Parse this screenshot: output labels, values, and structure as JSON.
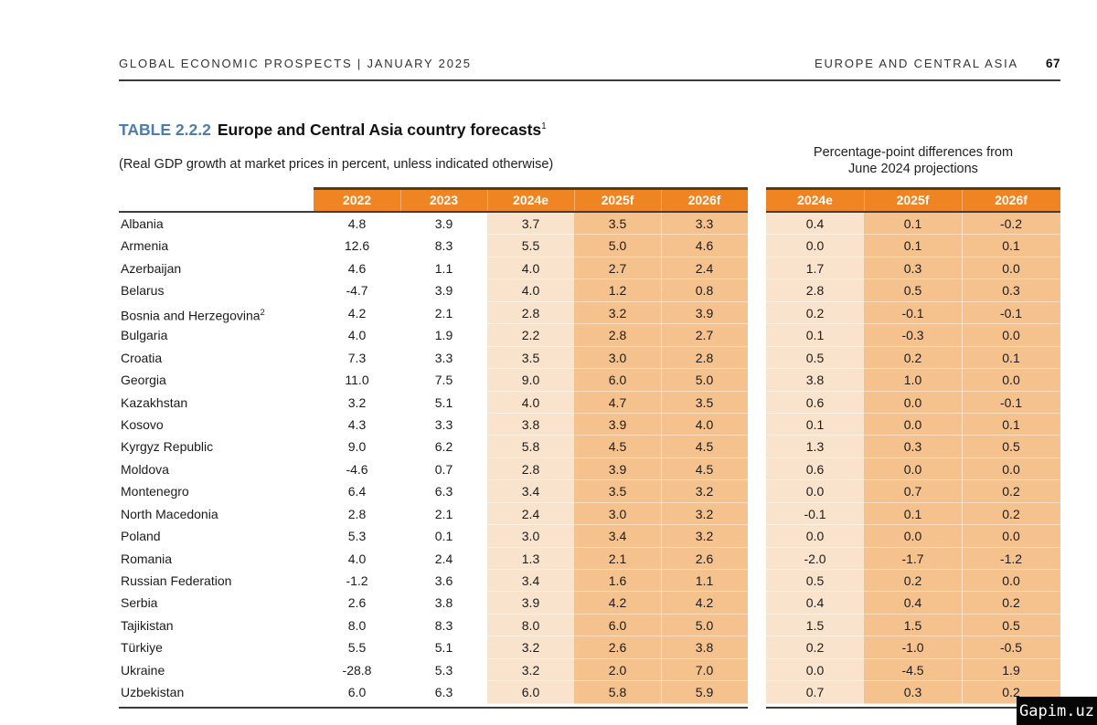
{
  "page_header": {
    "left_title": "GLOBAL ECONOMIC PROSPECTS | JANUARY 2025",
    "section": "EUROPE AND CENTRAL ASIA",
    "page_number": "67"
  },
  "table": {
    "label": "TABLE 2.2.2",
    "title": "Europe and Central Asia country forecasts",
    "title_footnote": "1",
    "subtitle": "(Real GDP growth at market prices in percent, unless indicated otherwise)",
    "diff_note_line1": "Percentage-point differences from",
    "diff_note_line2": "June 2024 projections",
    "columns": [
      "2022",
      "2023",
      "2024e",
      "2025f",
      "2026f"
    ],
    "diff_columns": [
      "2024e",
      "2025f",
      "2026f"
    ],
    "rows": [
      {
        "name": "Albania",
        "values": [
          "4.8",
          "3.9",
          "3.7",
          "3.5",
          "3.3"
        ],
        "diffs": [
          "0.4",
          "0.1",
          "-0.2"
        ]
      },
      {
        "name": "Armenia",
        "values": [
          "12.6",
          "8.3",
          "5.5",
          "5.0",
          "4.6"
        ],
        "diffs": [
          "0.0",
          "0.1",
          "0.1"
        ]
      },
      {
        "name": "Azerbaijan",
        "values": [
          "4.6",
          "1.1",
          "4.0",
          "2.7",
          "2.4"
        ],
        "diffs": [
          "1.7",
          "0.3",
          "0.0"
        ]
      },
      {
        "name": "Belarus",
        "values": [
          "-4.7",
          "3.9",
          "4.0",
          "1.2",
          "0.8"
        ],
        "diffs": [
          "2.8",
          "0.5",
          "0.3"
        ]
      },
      {
        "name": "Bosnia and Herzegovina",
        "footnote": "2",
        "values": [
          "4.2",
          "2.1",
          "2.8",
          "3.2",
          "3.9"
        ],
        "diffs": [
          "0.2",
          "-0.1",
          "-0.1"
        ]
      },
      {
        "name": "Bulgaria",
        "values": [
          "4.0",
          "1.9",
          "2.2",
          "2.8",
          "2.7"
        ],
        "diffs": [
          "0.1",
          "-0.3",
          "0.0"
        ]
      },
      {
        "name": "Croatia",
        "values": [
          "7.3",
          "3.3",
          "3.5",
          "3.0",
          "2.8"
        ],
        "diffs": [
          "0.5",
          "0.2",
          "0.1"
        ]
      },
      {
        "name": "Georgia",
        "values": [
          "11.0",
          "7.5",
          "9.0",
          "6.0",
          "5.0"
        ],
        "diffs": [
          "3.8",
          "1.0",
          "0.0"
        ]
      },
      {
        "name": "Kazakhstan",
        "values": [
          "3.2",
          "5.1",
          "4.0",
          "4.7",
          "3.5"
        ],
        "diffs": [
          "0.6",
          "0.0",
          "-0.1"
        ]
      },
      {
        "name": "Kosovo",
        "values": [
          "4.3",
          "3.3",
          "3.8",
          "3.9",
          "4.0"
        ],
        "diffs": [
          "0.1",
          "0.0",
          "0.1"
        ]
      },
      {
        "name": "Kyrgyz Republic",
        "values": [
          "9.0",
          "6.2",
          "5.8",
          "4.5",
          "4.5"
        ],
        "diffs": [
          "1.3",
          "0.3",
          "0.5"
        ]
      },
      {
        "name": "Moldova",
        "values": [
          "-4.6",
          "0.7",
          "2.8",
          "3.9",
          "4.5"
        ],
        "diffs": [
          "0.6",
          "0.0",
          "0.0"
        ]
      },
      {
        "name": "Montenegro",
        "values": [
          "6.4",
          "6.3",
          "3.4",
          "3.5",
          "3.2"
        ],
        "diffs": [
          "0.0",
          "0.7",
          "0.2"
        ]
      },
      {
        "name": "North Macedonia",
        "values": [
          "2.8",
          "2.1",
          "2.4",
          "3.0",
          "3.2"
        ],
        "diffs": [
          "-0.1",
          "0.1",
          "0.2"
        ]
      },
      {
        "name": "Poland",
        "values": [
          "5.3",
          "0.1",
          "3.0",
          "3.4",
          "3.2"
        ],
        "diffs": [
          "0.0",
          "0.0",
          "0.0"
        ]
      },
      {
        "name": "Romania",
        "values": [
          "4.0",
          "2.4",
          "1.3",
          "2.1",
          "2.6"
        ],
        "diffs": [
          "-2.0",
          "-1.7",
          "-1.2"
        ]
      },
      {
        "name": "Russian Federation",
        "values": [
          "-1.2",
          "3.6",
          "3.4",
          "1.6",
          "1.1"
        ],
        "diffs": [
          "0.5",
          "0.2",
          "0.0"
        ]
      },
      {
        "name": "Serbia",
        "values": [
          "2.6",
          "3.8",
          "3.9",
          "4.2",
          "4.2"
        ],
        "diffs": [
          "0.4",
          "0.4",
          "0.2"
        ]
      },
      {
        "name": "Tajikistan",
        "values": [
          "8.0",
          "8.3",
          "8.0",
          "6.0",
          "5.0"
        ],
        "diffs": [
          "1.5",
          "1.5",
          "0.5"
        ]
      },
      {
        "name": "Türkiye",
        "values": [
          "5.5",
          "5.1",
          "3.2",
          "2.6",
          "3.8"
        ],
        "diffs": [
          "0.2",
          "-1.0",
          "-0.5"
        ]
      },
      {
        "name": "Ukraine",
        "values": [
          "-28.8",
          "5.3",
          "3.2",
          "2.0",
          "7.0"
        ],
        "diffs": [
          "0.0",
          "-4.5",
          "1.9"
        ]
      },
      {
        "name": "Uzbekistan",
        "values": [
          "6.0",
          "6.3",
          "6.0",
          "5.8",
          "5.9"
        ],
        "diffs": [
          "0.7",
          "0.3",
          "0.2"
        ]
      }
    ]
  },
  "watermark": {
    "text": "Gapim.uz"
  },
  "colors": {
    "header_band_orange": "#EF8423",
    "estimate_column_peach": "#FAE3CC",
    "forecast_column_apricot": "#F5C28E",
    "table_label_blue": "#4C7EAC",
    "rule_dark": "#3A3A3A"
  }
}
